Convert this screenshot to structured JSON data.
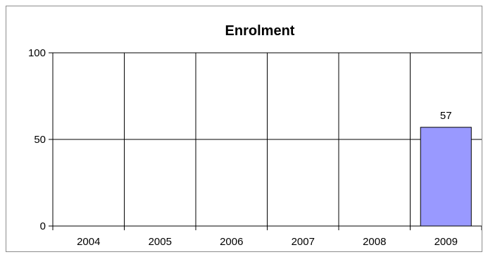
{
  "chart_data": {
    "type": "bar",
    "title": "Enrolment",
    "categories": [
      "2004",
      "2005",
      "2006",
      "2007",
      "2008",
      "2009"
    ],
    "series": [
      {
        "values": [
          0,
          0,
          0,
          0,
          0,
          57
        ],
        "data_labels": [
          "",
          "",
          "",
          "",
          "",
          "57"
        ]
      }
    ],
    "ylim": [
      0,
      100
    ],
    "y_ticks": [
      0,
      50,
      100
    ],
    "grid": {
      "horizontal": true,
      "vertical": true
    },
    "bar_color": "#9999ff",
    "bar_border_color": "#000000"
  }
}
